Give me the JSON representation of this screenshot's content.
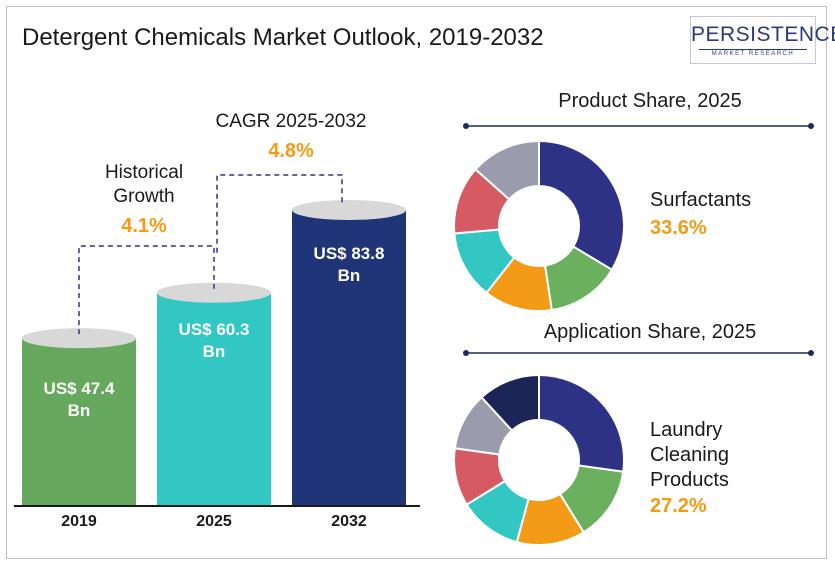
{
  "title": "Detergent Chemicals Market Outlook, 2019-2032",
  "logo": {
    "word": "PERSISTENCE",
    "sub": "MARKET RESEARCH"
  },
  "colors": {
    "green": "#66a85d",
    "teal": "#33c7c4",
    "navy": "#1f3577",
    "accent": "#f39a17",
    "donut": [
      "#2e3284",
      "#6bb05e",
      "#f39a17",
      "#33c7c4",
      "#d65a63",
      "#9a9bad",
      "#1b2556"
    ]
  },
  "historical": {
    "label_line1": "Historical",
    "label_line2": "Growth",
    "value": "4.1%"
  },
  "cagr": {
    "label": "CAGR 2025-2032",
    "value": "4.8%"
  },
  "chart_data": [
    {
      "type": "bar",
      "categories": [
        "2019",
        "2025",
        "2032"
      ],
      "values": [
        47.4,
        60.3,
        83.8
      ],
      "value_labels": [
        {
          "line1": "US$ 47.4",
          "line2": "Bn"
        },
        {
          "line1": "US$ 60.3",
          "line2": "Bn"
        },
        {
          "line1": "US$ 83.8",
          "line2": "Bn"
        }
      ]
    },
    {
      "type": "pie",
      "title": "Product Share, 2025",
      "highlight": {
        "name": "Surfactants",
        "value": "33.6%"
      },
      "values": [
        33.6,
        14,
        13,
        13,
        13,
        13.4
      ]
    },
    {
      "type": "pie",
      "title": "Application Share, 2025",
      "highlight": {
        "name_lines": [
          "Laundry",
          "Cleaning",
          "Products"
        ],
        "value": "27.2%"
      },
      "values": [
        27.2,
        14,
        13,
        12,
        11,
        11,
        11.8
      ]
    }
  ]
}
